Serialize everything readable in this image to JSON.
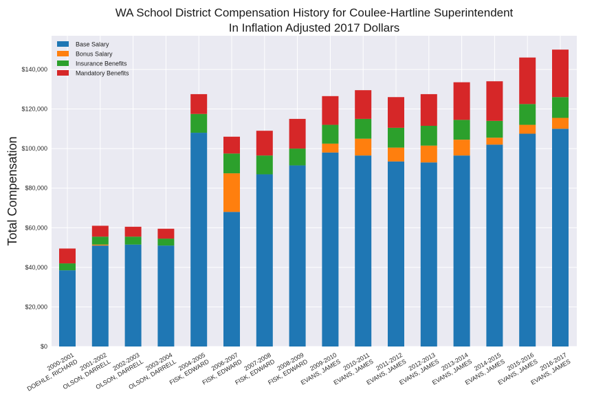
{
  "chart_data": {
    "type": "bar",
    "stacked": true,
    "title": "WA School District Compensation History for Coulee-Hartline Superintendent",
    "subtitle": "In Inflation Adjusted 2017 Dollars",
    "xlabel": "",
    "ylabel": "Total Compensation",
    "ylim": [
      0,
      157000
    ],
    "yticks": [
      0,
      20000,
      40000,
      60000,
      80000,
      100000,
      120000,
      140000
    ],
    "ytick_labels": [
      "$0",
      "$20,000",
      "$40,000",
      "$60,000",
      "$80,000",
      "$100,000",
      "$120,000",
      "$140,000"
    ],
    "grid": true,
    "legend_position": "top-left",
    "categories": [
      [
        "2000-2001",
        "DOEHLE, RICHARD"
      ],
      [
        "2001-2002",
        "OLSON, DARRELL"
      ],
      [
        "2002-2003",
        "OLSON, DARRELL"
      ],
      [
        "2003-2004",
        "OLSON, DARRELL"
      ],
      [
        "2004-2005",
        "FISK, EDWARD"
      ],
      [
        "2006-2007",
        "FISK, EDWARD"
      ],
      [
        "2007-2008",
        "FISK, EDWARD"
      ],
      [
        "2008-2009",
        "FISK, EDWARD"
      ],
      [
        "2009-2010",
        "EVANS, JAMES"
      ],
      [
        "2010-2011",
        "EVANS, JAMES"
      ],
      [
        "2011-2012",
        "EVANS, JAMES"
      ],
      [
        "2012-2013",
        "EVANS, JAMES"
      ],
      [
        "2013-2014",
        "EVANS, JAMES"
      ],
      [
        "2014-2015",
        "EVANS, JAMES"
      ],
      [
        "2015-2016",
        "EVANS, JAMES"
      ],
      [
        "2016-2017",
        "EVANS, JAMES"
      ]
    ],
    "series": [
      {
        "name": "Base Salary",
        "color": "#1f77b4",
        "values": [
          38500,
          51000,
          51500,
          51000,
          108000,
          68000,
          87000,
          91500,
          98000,
          96500,
          93500,
          93000,
          96500,
          102000,
          107500,
          110000
        ]
      },
      {
        "name": "Bonus Salary",
        "color": "#ff7f0e",
        "values": [
          0,
          500,
          0,
          0,
          0,
          19500,
          0,
          0,
          4500,
          8500,
          7000,
          8500,
          8000,
          3500,
          4500,
          5500
        ]
      },
      {
        "name": "Insurance Benefits",
        "color": "#2ca02c",
        "values": [
          3500,
          4000,
          4000,
          3500,
          9500,
          10000,
          9500,
          8500,
          9500,
          10000,
          10000,
          10000,
          10000,
          8500,
          10500,
          10500
        ]
      },
      {
        "name": "Mandatory Benefits",
        "color": "#d62728",
        "values": [
          7500,
          5500,
          5000,
          5000,
          10000,
          8500,
          12500,
          15000,
          14500,
          14500,
          15500,
          16000,
          19000,
          20000,
          23500,
          24000
        ]
      }
    ]
  }
}
